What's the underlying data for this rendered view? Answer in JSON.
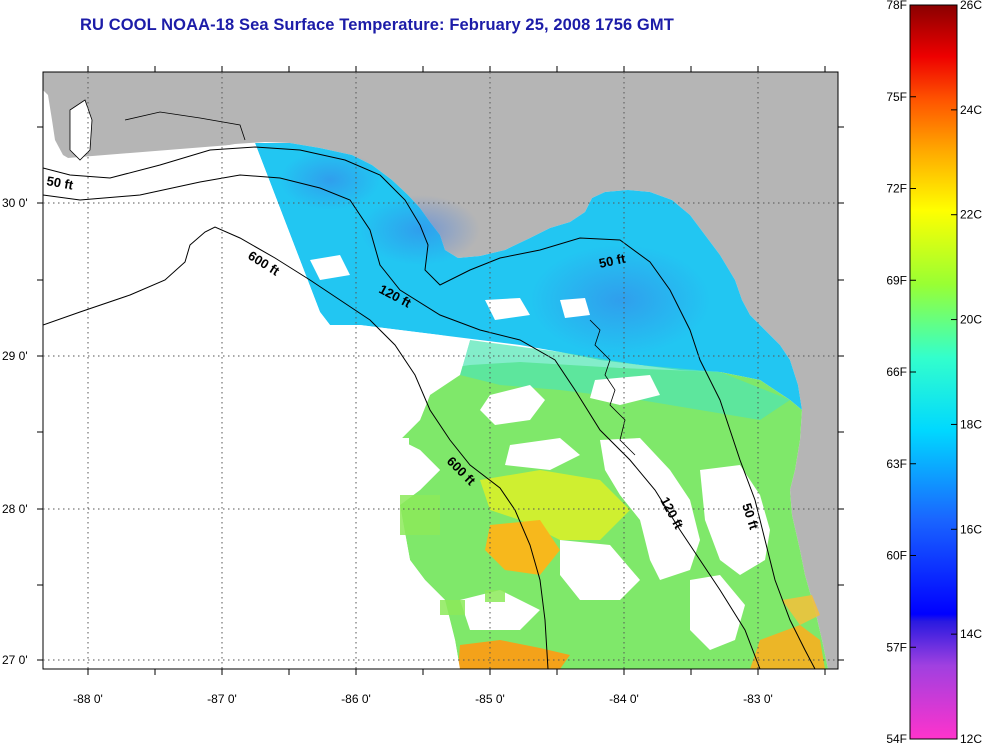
{
  "title": "RU COOL  NOAA-18  Sea Surface Temperature:  February 25, 2008 1756 GMT",
  "map": {
    "lon_labels": [
      "-88 0'",
      "-87 0'",
      "-86 0'",
      "-85 0'",
      "-84 0'",
      "-83 0'"
    ],
    "lat_labels": [
      "30 0'",
      "29 0'",
      "28 0'",
      "27 0'"
    ],
    "contour_labels": {
      "c50a": "50 ft",
      "c600a": "600 ft",
      "c120a": "120 ft",
      "c50b": "50 ft",
      "c600b": "600 ft",
      "c120b": "120 ft",
      "c50c": "50 ft"
    },
    "colors": {
      "land": "#b5b5b5",
      "no_data": "#ffffff",
      "grid": "#555555"
    }
  },
  "colorbar": {
    "celsius_labels": [
      "26C",
      "24C",
      "22C",
      "20C",
      "18C",
      "16C",
      "14C",
      "12C"
    ],
    "fahrenheit_labels": [
      "78F",
      "75F",
      "72F",
      "69F",
      "66F",
      "63F",
      "60F",
      "57F",
      "54F"
    ],
    "range_c": [
      12,
      26
    ],
    "range_f": [
      54,
      78
    ]
  }
}
